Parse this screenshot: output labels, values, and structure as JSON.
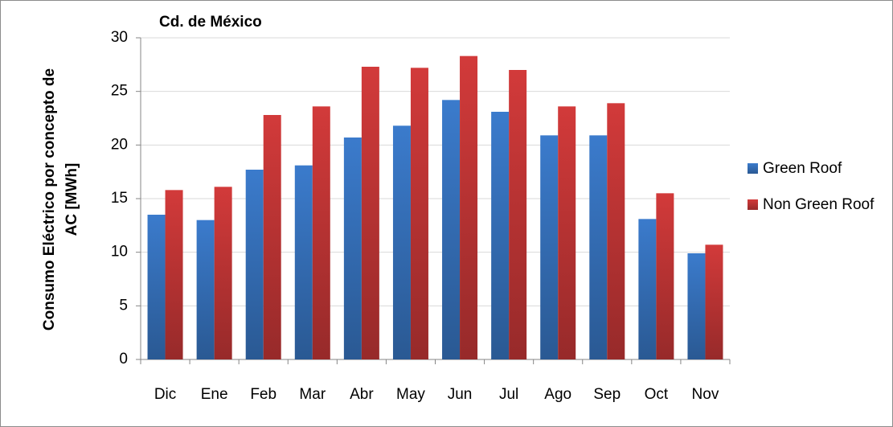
{
  "chart_data": {
    "type": "bar",
    "title": "Cd. de México",
    "y_label": [
      "Consumo Eléctrico por concepto de",
      "AC [MWh]"
    ],
    "categories": [
      "Dic",
      "Ene",
      "Feb",
      "Mar",
      "Abr",
      "May",
      "Jun",
      "Jul",
      "Ago",
      "Sep",
      "Oct",
      "Nov"
    ],
    "series": [
      {
        "name": "Green Roof",
        "color": "#3b7bcc",
        "values": [
          13.5,
          13.0,
          17.7,
          18.1,
          20.7,
          21.8,
          24.2,
          23.1,
          20.9,
          20.9,
          13.1,
          9.9
        ]
      },
      {
        "name": "Non Green Roof",
        "color": "#d23a3a",
        "values": [
          15.8,
          16.1,
          22.8,
          23.6,
          27.3,
          27.2,
          28.3,
          27.0,
          23.6,
          23.9,
          15.5,
          10.7
        ]
      }
    ],
    "ylim": [
      0,
      30
    ],
    "yticks": [
      0,
      5,
      10,
      15,
      20,
      25,
      30
    ],
    "grid": true,
    "legend": "right"
  }
}
